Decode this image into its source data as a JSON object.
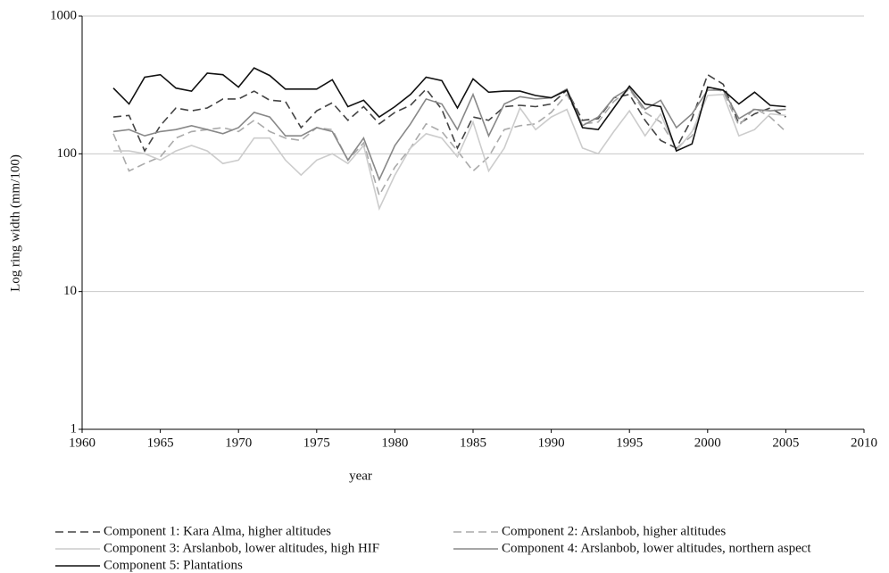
{
  "chart_data": {
    "type": "line",
    "x_label": "year",
    "y_label": "Log ring width (mm/100)",
    "yscale": "log",
    "grid": true,
    "legend": "bottom",
    "xlim": [
      1960,
      2010
    ],
    "xticks": [
      1960,
      1965,
      1970,
      1975,
      1980,
      1985,
      1990,
      1995,
      2000,
      2005,
      2010
    ],
    "ylim": [
      1,
      1000
    ],
    "yticks": [
      1,
      10,
      100,
      1000
    ],
    "x": [
      1962,
      1963,
      1964,
      1965,
      1966,
      1967,
      1968,
      1969,
      1970,
      1971,
      1972,
      1973,
      1974,
      1975,
      1976,
      1977,
      1978,
      1979,
      1980,
      1981,
      1982,
      1983,
      1984,
      1985,
      1986,
      1987,
      1988,
      1989,
      1990,
      1991,
      1992,
      1993,
      1994,
      1995,
      1996,
      1997,
      1998,
      1999,
      2000,
      2001,
      2002,
      2003,
      2004,
      2005
    ],
    "series": [
      {
        "name": "Component 1: Kara Alma, higher altitudes",
        "color": "#444444",
        "dash": "dashed",
        "values": [
          185,
          190,
          105,
          160,
          215,
          205,
          215,
          250,
          250,
          285,
          245,
          240,
          155,
          205,
          235,
          175,
          220,
          165,
          200,
          225,
          295,
          210,
          110,
          185,
          175,
          220,
          225,
          220,
          230,
          290,
          175,
          180,
          255,
          270,
          175,
          125,
          110,
          180,
          375,
          320,
          165,
          195,
          215,
          185
        ]
      },
      {
        "name": "Component 2: Arslanbob, higher altitudes",
        "color": "#aaaaaa",
        "dash": "dashed",
        "values": [
          140,
          75,
          85,
          95,
          130,
          145,
          150,
          155,
          145,
          175,
          145,
          130,
          125,
          155,
          150,
          90,
          120,
          50,
          80,
          110,
          165,
          145,
          105,
          75,
          95,
          150,
          160,
          165,
          200,
          270,
          165,
          170,
          240,
          295,
          200,
          170,
          110,
          135,
          300,
          285,
          160,
          215,
          185,
          145
        ]
      },
      {
        "name": "Component 3: Arslanbob, lower altitudes, high HIF",
        "color": "#cccccc",
        "dash": "solid",
        "values": [
          105,
          105,
          100,
          90,
          105,
          115,
          105,
          85,
          90,
          130,
          130,
          90,
          70,
          90,
          100,
          85,
          115,
          40,
          70,
          110,
          140,
          130,
          95,
          170,
          75,
          110,
          215,
          150,
          185,
          210,
          110,
          100,
          145,
          205,
          135,
          195,
          105,
          145,
          265,
          270,
          135,
          150,
          195,
          190
        ]
      },
      {
        "name": "Component 4: Arslanbob, lower altitudes, northern aspect",
        "color": "#888888",
        "dash": "solid",
        "values": [
          145,
          150,
          135,
          145,
          150,
          160,
          150,
          140,
          155,
          200,
          185,
          135,
          135,
          155,
          145,
          90,
          130,
          65,
          115,
          165,
          250,
          230,
          150,
          270,
          135,
          230,
          260,
          250,
          255,
          295,
          160,
          185,
          255,
          300,
          210,
          245,
          155,
          195,
          290,
          290,
          180,
          210,
          205,
          210
        ]
      },
      {
        "name": "Component 5: Plantations",
        "color": "#111111",
        "dash": "solid",
        "values": [
          300,
          230,
          360,
          375,
          300,
          285,
          385,
          375,
          305,
          420,
          370,
          295,
          295,
          295,
          345,
          220,
          245,
          185,
          220,
          270,
          360,
          340,
          215,
          350,
          280,
          285,
          285,
          265,
          255,
          290,
          155,
          150,
          215,
          310,
          230,
          220,
          105,
          118,
          305,
          290,
          230,
          280,
          225,
          220
        ]
      }
    ]
  }
}
